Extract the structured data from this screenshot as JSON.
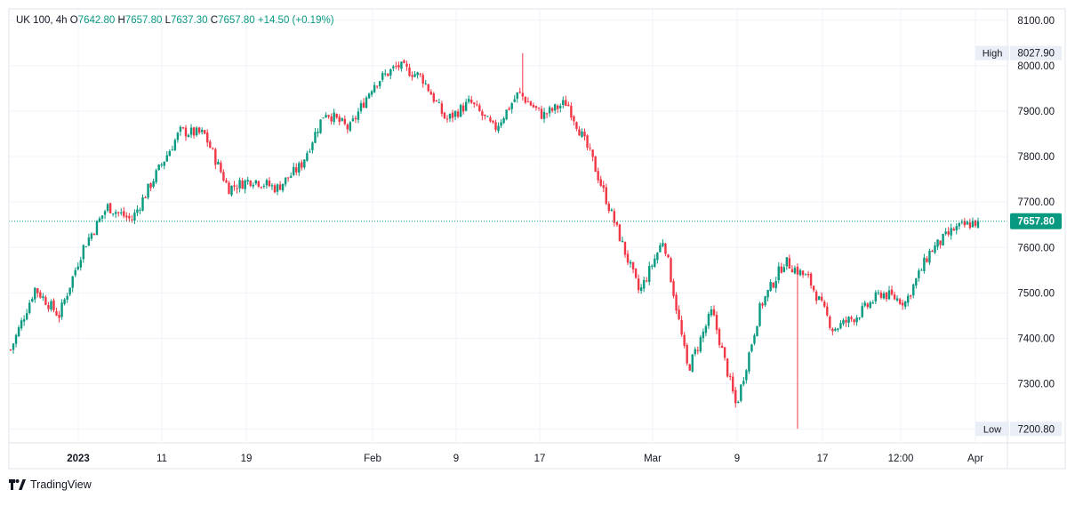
{
  "legend": {
    "symbol": "UK 100",
    "interval": "4h",
    "open_label": "O",
    "open": "7642.80",
    "high_label": "H",
    "high": "7657.80",
    "low_label": "L",
    "low": "7637.30",
    "close_label": "C",
    "close": "7657.80",
    "change": "+14.50 (+0.19%)"
  },
  "markers": {
    "high_label": "High",
    "high_value": "8027.90",
    "low_label": "Low",
    "low_value": "7200.80",
    "last_price": "7657.80"
  },
  "footer": {
    "brand": "TradingView"
  },
  "colors": {
    "up": "#089981",
    "down": "#f23645",
    "grid": "#f0f3fa",
    "axis": "#e0e3eb"
  },
  "chart_data": {
    "type": "candlestick",
    "interval": "4h",
    "y_ticks": [
      "8100.00",
      "8000.00",
      "7900.00",
      "7800.00",
      "7700.00",
      "7600.00",
      "7500.00",
      "7400.00",
      "7300.00",
      "7200.00"
    ],
    "ylim": [
      7170,
      8125
    ],
    "x_ticks": [
      "2023",
      "11",
      "19",
      "Feb",
      "9",
      "17",
      "Mar",
      "9",
      "17",
      "12:00",
      "Apr"
    ],
    "key_points": [
      7375,
      7510,
      7450,
      7600,
      7690,
      7660,
      7760,
      7855,
      7850,
      7730,
      7750,
      7730,
      7780,
      7900,
      7860,
      7960,
      8000,
      7975,
      7880,
      7920,
      7860,
      7940,
      7890,
      7920,
      7800,
      7650,
      7500,
      7620,
      7330,
      7460,
      7250,
      7470,
      7570,
      7530,
      7420,
      7450,
      7500,
      7480,
      7590,
      7640,
      7658
    ],
    "high": 8027.9,
    "low": 7200.8,
    "last": 7657.8
  }
}
